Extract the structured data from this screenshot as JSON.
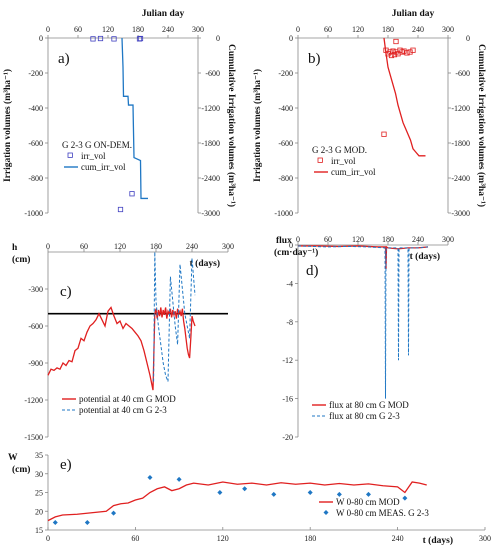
{
  "chart_data": [
    {
      "id": "a",
      "type": "line",
      "panel_label": "a)",
      "top_xlabel": "Julian day",
      "ylabel": "Irrigation volumes (m³ha⁻¹)",
      "y2label": "Cumulative Irrigation volumes (m³ha⁻¹)",
      "xlim": [
        0,
        300
      ],
      "xticks": [
        0,
        60,
        120,
        180,
        240,
        300
      ],
      "ylim": [
        -1000,
        0
      ],
      "yticks": [
        0,
        -200,
        -400,
        -600,
        -800,
        -1000
      ],
      "y2lim": [
        -3000,
        0
      ],
      "y2ticks": [
        0,
        -600,
        -1200,
        -1800,
        -2400,
        -3000
      ],
      "legend_title": "G 2-3  G ON-DEM.",
      "series": [
        {
          "name": "irr_vol",
          "style": "square-marker",
          "color": "#4040c0",
          "axis": "left",
          "x": [
            90,
            105,
            132,
            145,
            168,
            183,
            185
          ],
          "y": [
            -5,
            -3,
            -5,
            -980,
            -890,
            -5,
            -3
          ]
        },
        {
          "name": "cum_irr_vol",
          "style": "line",
          "color": "#1f77c4",
          "axis": "right",
          "x": [
            148,
            150,
            151,
            160,
            161,
            170,
            172,
            185,
            186,
            200
          ],
          "y": [
            0,
            -500,
            -1000,
            -1000,
            -1150,
            -1150,
            -2050,
            -2100,
            -2750,
            -2750
          ]
        }
      ]
    },
    {
      "id": "b",
      "type": "line",
      "panel_label": "b)",
      "top_xlabel": "Julian day",
      "ylabel": "Irrigation volumes (m³ha⁻¹)",
      "y2label": "Cumulative Irrigation volumes (m³ha⁻¹)",
      "xlim": [
        0,
        300
      ],
      "xticks": [
        0,
        60,
        120,
        180,
        240,
        300
      ],
      "ylim": [
        -1000,
        0
      ],
      "yticks": [
        0,
        -200,
        -400,
        -600,
        -800,
        -1000
      ],
      "y2lim": [
        -3000,
        0
      ],
      "y2ticks": [
        0,
        -600,
        -1200,
        -1800,
        -2400,
        -3000
      ],
      "legend_title": "G 2-3  G MOD.",
      "series": [
        {
          "name": "irr_vol",
          "style": "square-marker",
          "color": "#e02020",
          "axis": "left",
          "x": [
            172,
            176,
            180,
            184,
            187,
            190,
            193,
            196,
            200,
            204,
            208,
            212,
            218,
            224,
            230,
            196
          ],
          "y": [
            -550,
            -70,
            -90,
            -80,
            -100,
            -75,
            -95,
            -80,
            -90,
            -70,
            -80,
            -75,
            -85,
            -80,
            -70,
            -20
          ]
        },
        {
          "name": "cum_irr_vol",
          "style": "line",
          "color": "#e02020",
          "axis": "right",
          "x": [
            172,
            175,
            180,
            185,
            190,
            195,
            200,
            205,
            210,
            215,
            220,
            225,
            230,
            235,
            240,
            242,
            255
          ],
          "y": [
            0,
            -200,
            -500,
            -650,
            -800,
            -950,
            -1150,
            -1300,
            -1450,
            -1550,
            -1650,
            -1750,
            -1900,
            -1950,
            -2000,
            -2020,
            -2020
          ]
        }
      ]
    },
    {
      "id": "c",
      "type": "line",
      "panel_label": "c)",
      "ylabel": "h",
      "ylabel_unit": "(cm)",
      "xlabel": "t (days)",
      "xlim": [
        0,
        300
      ],
      "xticks": [
        0,
        60,
        120,
        180,
        240,
        300
      ],
      "ylim": [
        -1500,
        0
      ],
      "yticks": [
        -300,
        -600,
        -900,
        -1200,
        -1500
      ],
      "hline": -500,
      "series": [
        {
          "name": "potential at 40 cm G MOD",
          "style": "line",
          "color": "#e02020",
          "x": [
            0,
            5,
            10,
            15,
            20,
            25,
            30,
            35,
            40,
            45,
            50,
            55,
            60,
            65,
            70,
            75,
            80,
            85,
            90,
            95,
            100,
            105,
            110,
            115,
            120,
            125,
            130,
            135,
            140,
            145,
            150,
            155,
            160,
            165,
            170,
            175,
            178,
            180,
            182,
            184,
            186,
            188,
            190,
            192,
            194,
            196,
            198,
            200,
            202,
            204,
            206,
            208,
            210,
            212,
            214,
            216,
            218,
            220,
            222,
            224,
            226,
            228,
            230,
            232,
            234,
            236,
            238,
            240,
            242,
            245
          ],
          "y": [
            -1000,
            -950,
            -960,
            -940,
            -950,
            -900,
            -920,
            -880,
            -890,
            -800,
            -780,
            -700,
            -720,
            -650,
            -600,
            -580,
            -550,
            -500,
            -550,
            -600,
            -480,
            -450,
            -520,
            -580,
            -560,
            -620,
            -580,
            -600,
            -620,
            -650,
            -680,
            -720,
            -800,
            -900,
            -1000,
            -1120,
            -500,
            -460,
            -540,
            -470,
            -520,
            -450,
            -530,
            -470,
            -510,
            -450,
            -540,
            -480,
            -500,
            -460,
            -530,
            -470,
            -510,
            -480,
            -540,
            -460,
            -500,
            -480,
            -520,
            -460,
            -560,
            -620,
            -700,
            -780,
            -830,
            -860,
            -700,
            -520,
            -560,
            -600
          ]
        },
        {
          "name": "potential at 40 cm G 2-3",
          "style": "dashed",
          "color": "#1f77c4",
          "x": [
            176,
            178,
            180,
            184,
            188,
            192,
            196,
            200,
            204,
            208,
            212,
            216,
            220,
            224,
            228,
            232,
            236,
            240,
            245
          ],
          "y": [
            -1050,
            0,
            -400,
            -600,
            -750,
            -900,
            -1000,
            -1050,
            -200,
            -400,
            -600,
            -750,
            -100,
            -300,
            -500,
            -600,
            -700,
            -50,
            -350
          ]
        }
      ]
    },
    {
      "id": "d",
      "type": "line",
      "panel_label": "d)",
      "ylabel": "flux",
      "ylabel_unit": "(cm·day⁻¹)",
      "xlabel": "t (days)",
      "xlim": [
        0,
        300
      ],
      "xticks": [
        0,
        60,
        120,
        180,
        240,
        300
      ],
      "ylim": [
        -20,
        0
      ],
      "yticks": [
        0,
        -4,
        -8,
        -12,
        -16,
        -20
      ],
      "series": [
        {
          "name": "flux at 80 cm G MOD",
          "style": "line",
          "color": "#e02020",
          "x": [
            0,
            40,
            80,
            120,
            160,
            175,
            176,
            177,
            180,
            200,
            220,
            240,
            260
          ],
          "y": [
            -0.1,
            -0.1,
            -0.15,
            -0.1,
            -0.2,
            -0.2,
            -2.5,
            -0.2,
            -0.3,
            -0.4,
            -0.3,
            -0.3,
            -0.2
          ]
        },
        {
          "name": "flux at 80 cm G 2-3",
          "style": "dashed",
          "color": "#1f77c4",
          "x": [
            0,
            60,
            100,
            140,
            174,
            175,
            176,
            178,
            200,
            201,
            202,
            220,
            221,
            222,
            240,
            260
          ],
          "y": [
            -0.1,
            -0.2,
            -0.15,
            -0.2,
            -0.3,
            -16,
            -0.5,
            -0.3,
            -0.3,
            -12,
            -0.3,
            -0.3,
            -11.5,
            -0.3,
            -0.3,
            -0.2
          ]
        }
      ]
    },
    {
      "id": "e",
      "type": "line",
      "panel_label": "e)",
      "ylabel": "W",
      "ylabel_unit": "(cm)",
      "xlabel": "t (days)",
      "xlim": [
        0,
        300
      ],
      "xticks": [
        0,
        60,
        120,
        180,
        240,
        300
      ],
      "ylim": [
        15,
        35
      ],
      "yticks": [
        15,
        20,
        25,
        30,
        35
      ],
      "series": [
        {
          "name": "W 0-80 cm  MOD",
          "style": "line",
          "color": "#e02020",
          "x": [
            0,
            5,
            10,
            20,
            30,
            40,
            45,
            50,
            55,
            60,
            65,
            70,
            75,
            80,
            85,
            90,
            95,
            100,
            110,
            120,
            130,
            140,
            150,
            160,
            170,
            180,
            190,
            200,
            210,
            220,
            230,
            240,
            245,
            250,
            255,
            260
          ],
          "y": [
            17.5,
            18.5,
            19,
            19.2,
            19.6,
            20,
            21.5,
            22,
            22.2,
            23,
            23.5,
            25,
            26,
            26.5,
            25.5,
            26,
            27,
            27.5,
            27,
            27.8,
            27.2,
            27.5,
            27,
            27.6,
            27.2,
            27.5,
            27,
            27.4,
            27,
            27.3,
            26.8,
            26.5,
            25,
            27.8,
            27.5,
            27
          ]
        },
        {
          "name": "W 0-80 cm MEAS. G 2-3",
          "style": "diamond-marker",
          "color": "#1f77c4",
          "x": [
            5,
            27,
            45,
            70,
            90,
            118,
            135,
            155,
            180,
            200,
            220,
            245
          ],
          "y": [
            17,
            17,
            19.5,
            29,
            28.5,
            25,
            26,
            24.5,
            25,
            24.5,
            24.5,
            23.5
          ]
        }
      ]
    }
  ]
}
